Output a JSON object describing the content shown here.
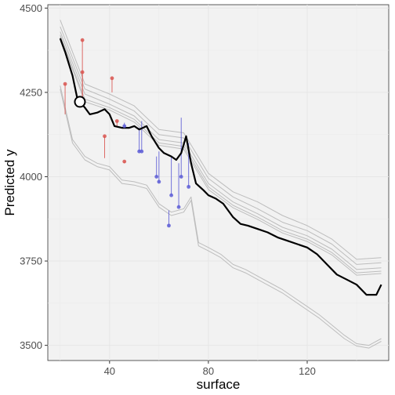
{
  "chart_data": {
    "type": "line",
    "title": "",
    "xlabel": "surface",
    "ylabel": "Predicted y",
    "xlim": [
      15,
      153
    ],
    "ylim": [
      3455,
      4510
    ],
    "x_ticks": [
      40,
      80,
      120
    ],
    "y_ticks": [
      3500,
      3750,
      4000,
      4250,
      4500
    ],
    "grid": true,
    "legend": "none",
    "colors": {
      "panel_bg": "#f2f2f2",
      "grid": "#ebebeb",
      "main_line": "#000000",
      "ice_lines": "#bdbdbd",
      "positive_residual": "#d9534f",
      "negative_residual": "#5a5ad6"
    },
    "main_profile": {
      "x": [
        20,
        22,
        25,
        27,
        30,
        32,
        35,
        38,
        40,
        42,
        45,
        48,
        50,
        52,
        55,
        57,
        60,
        62,
        65,
        67,
        69,
        71,
        73,
        75,
        78,
        80,
        83,
        86,
        88,
        90,
        93,
        96,
        100,
        104,
        108,
        112,
        116,
        120,
        124,
        128,
        132,
        136,
        140,
        144,
        148,
        150
      ],
      "y": [
        4410,
        4370,
        4300,
        4230,
        4205,
        4185,
        4190,
        4200,
        4185,
        4150,
        4145,
        4145,
        4150,
        4140,
        4150,
        4120,
        4085,
        4070,
        4060,
        4050,
        4070,
        4120,
        4040,
        3980,
        3960,
        3945,
        3935,
        3920,
        3900,
        3880,
        3860,
        3855,
        3845,
        3835,
        3820,
        3810,
        3800,
        3790,
        3770,
        3740,
        3710,
        3695,
        3680,
        3650,
        3650,
        3680
      ]
    },
    "ice_curves": [
      {
        "x": [
          20,
          30,
          40,
          50,
          60,
          70,
          80,
          90,
          100,
          110,
          120,
          130,
          140,
          150
        ],
        "y": [
          4465,
          4275,
          4245,
          4210,
          4140,
          4130,
          4010,
          3955,
          3925,
          3885,
          3855,
          3815,
          3755,
          3760
        ]
      },
      {
        "x": [
          20,
          30,
          40,
          50,
          60,
          70,
          80,
          90,
          100,
          110,
          120,
          130,
          140,
          150
        ],
        "y": [
          4445,
          4260,
          4230,
          4195,
          4125,
          4115,
          3995,
          3940,
          3905,
          3865,
          3840,
          3800,
          3740,
          3745
        ]
      },
      {
        "x": [
          20,
          30,
          40,
          50,
          60,
          70,
          80,
          90,
          100,
          110,
          120,
          130,
          140,
          150
        ],
        "y": [
          4430,
          4245,
          4215,
          4180,
          4110,
          4100,
          3980,
          3925,
          3890,
          3850,
          3825,
          3785,
          3725,
          3730
        ]
      },
      {
        "x": [
          20,
          30,
          40,
          50,
          60,
          70,
          80,
          90,
          100,
          110,
          120,
          130,
          140,
          150
        ],
        "y": [
          4420,
          4230,
          4205,
          4170,
          4100,
          4090,
          3970,
          3915,
          3880,
          3840,
          3815,
          3775,
          3715,
          3720
        ]
      },
      {
        "x": [
          20,
          30,
          40,
          50,
          60,
          70,
          80,
          90,
          100,
          110,
          120,
          130,
          140,
          150
        ],
        "y": [
          4415,
          4222,
          4198,
          4162,
          4093,
          4082,
          3962,
          3908,
          3873,
          3833,
          3808,
          3768,
          3708,
          3713
        ]
      },
      {
        "x": [
          20,
          25,
          30,
          35,
          40,
          45,
          50,
          55,
          60,
          65,
          70,
          73,
          76,
          80,
          85,
          90,
          95,
          100,
          105,
          110,
          115,
          120,
          125,
          130,
          135,
          140,
          145,
          150
        ],
        "y": [
          4270,
          4110,
          4060,
          4040,
          4030,
          3990,
          3985,
          3975,
          3920,
          3895,
          3905,
          3940,
          3805,
          3790,
          3770,
          3740,
          3725,
          3705,
          3685,
          3665,
          3640,
          3615,
          3590,
          3560,
          3530,
          3505,
          3500,
          3520
        ]
      },
      {
        "x": [
          20,
          25,
          30,
          35,
          40,
          45,
          50,
          55,
          60,
          65,
          70,
          73,
          76,
          80,
          85,
          90,
          95,
          100,
          105,
          110,
          115,
          120,
          125,
          130,
          135,
          140,
          145,
          150
        ],
        "y": [
          4260,
          4100,
          4050,
          4030,
          4020,
          3980,
          3975,
          3965,
          3910,
          3885,
          3895,
          3930,
          3795,
          3780,
          3760,
          3730,
          3715,
          3695,
          3675,
          3655,
          3630,
          3605,
          3580,
          3550,
          3520,
          3498,
          3492,
          3512
        ]
      }
    ],
    "highlight_point": {
      "x": 28,
      "y": 4222
    },
    "observations": [
      {
        "x": 22,
        "y": 4275,
        "pred": 4185,
        "sign": "positive"
      },
      {
        "x": 29,
        "y": 4405,
        "pred": 4222,
        "sign": "positive"
      },
      {
        "x": 29,
        "y": 4310,
        "pred": 4222,
        "sign": "positive"
      },
      {
        "x": 38,
        "y": 4120,
        "pred": 4055,
        "sign": "positive"
      },
      {
        "x": 41,
        "y": 4292,
        "pred": 4250,
        "sign": "positive"
      },
      {
        "x": 43,
        "y": 4165,
        "pred": 4150,
        "sign": "positive"
      },
      {
        "x": 46,
        "y": 4045,
        "pred": 4040,
        "sign": "positive"
      },
      {
        "x": 46,
        "y": 4150,
        "pred": 4160,
        "sign": "negative"
      },
      {
        "x": 52,
        "y": 4075,
        "pred": 4145,
        "sign": "negative"
      },
      {
        "x": 53,
        "y": 4075,
        "pred": 4165,
        "sign": "negative"
      },
      {
        "x": 59,
        "y": 4000,
        "pred": 4060,
        "sign": "negative"
      },
      {
        "x": 60,
        "y": 3985,
        "pred": 4075,
        "sign": "negative"
      },
      {
        "x": 64,
        "y": 3855,
        "pred": 3900,
        "sign": "negative"
      },
      {
        "x": 65,
        "y": 3945,
        "pred": 4060,
        "sign": "negative"
      },
      {
        "x": 68,
        "y": 3910,
        "pred": 4040,
        "sign": "negative"
      },
      {
        "x": 69,
        "y": 4000,
        "pred": 4175,
        "sign": "negative"
      },
      {
        "x": 72,
        "y": 3970,
        "pred": 4100,
        "sign": "negative"
      }
    ]
  }
}
